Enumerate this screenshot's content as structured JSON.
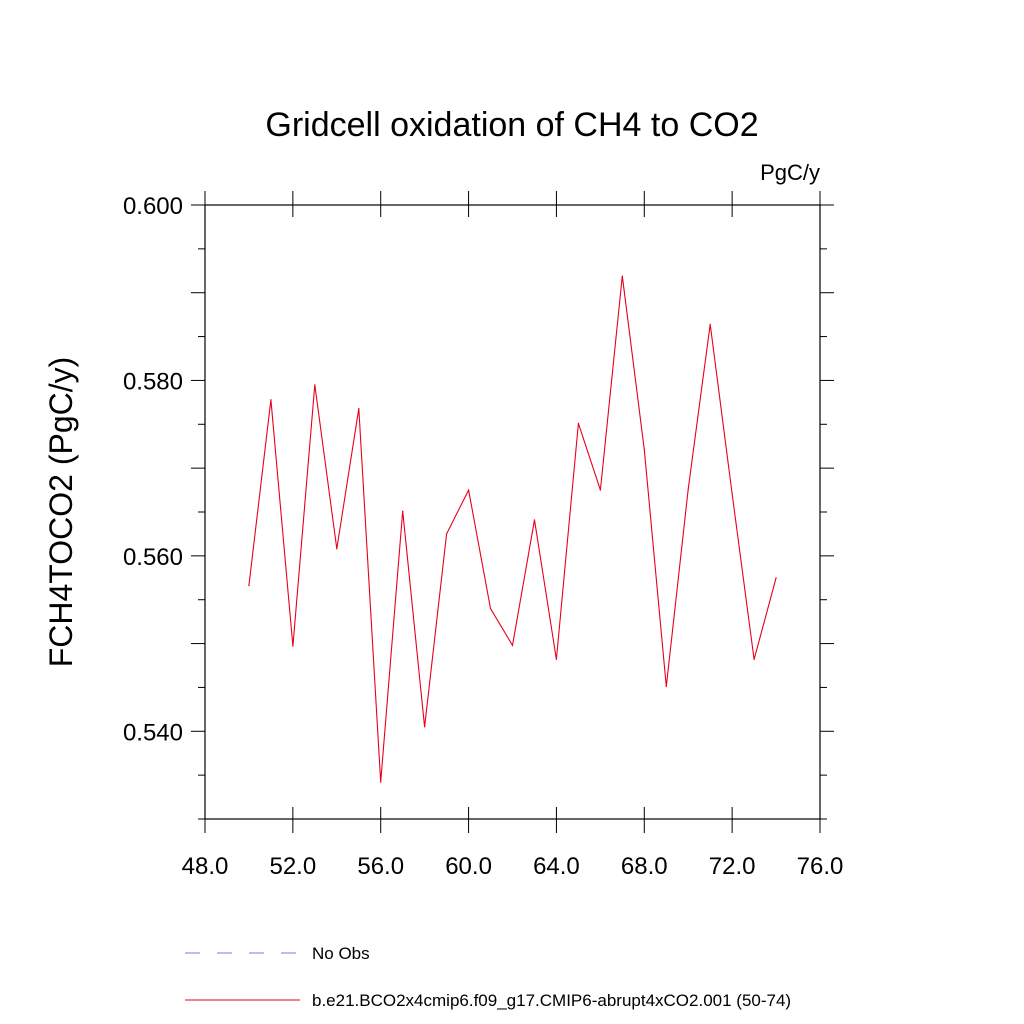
{
  "chart_data": {
    "type": "line",
    "title": "Gridcell oxidation of CH4 to CO2",
    "units": "PgC/y",
    "ylabel": "FCH4TOCO2  (PgC/y)",
    "xlabel": "",
    "xlim": [
      48,
      76
    ],
    "ylim": [
      0.53,
      0.6
    ],
    "x_ticks": [
      48,
      52,
      56,
      60,
      64,
      68,
      72,
      76
    ],
    "x_tick_labels": [
      "48.0",
      "52.0",
      "56.0",
      "60.0",
      "64.0",
      "68.0",
      "72.0",
      "76.0"
    ],
    "y_ticks": [
      0.54,
      0.56,
      0.58,
      0.6
    ],
    "y_tick_labels": [
      "0.540",
      "0.560",
      "0.580",
      "0.600"
    ],
    "grid": false,
    "legend_position": "bottom",
    "series": [
      {
        "name": "No Obs",
        "color": "#7b7bd0",
        "dash": "dashed",
        "x": [],
        "y": []
      },
      {
        "name": "b.e21.BCO2x4cmip6.f09_g17.CMIP6-abrupt4xCO2.001 (50-74)",
        "color": "#e8001a",
        "dash": "solid",
        "x": [
          50,
          51,
          52,
          53,
          54,
          55,
          56,
          57,
          58,
          59,
          60,
          61,
          62,
          63,
          64,
          65,
          66,
          67,
          68,
          69,
          70,
          71,
          72,
          73,
          74
        ],
        "y": [
          0.5566,
          0.5778,
          0.5497,
          0.5795,
          0.5608,
          0.5768,
          0.5342,
          0.5651,
          0.5405,
          0.5625,
          0.5675,
          0.554,
          0.5498,
          0.5641,
          0.5482,
          0.5751,
          0.5675,
          0.5919,
          0.5721,
          0.5451,
          0.5676,
          0.5864,
          0.5671,
          0.5482,
          0.5575
        ]
      }
    ]
  }
}
